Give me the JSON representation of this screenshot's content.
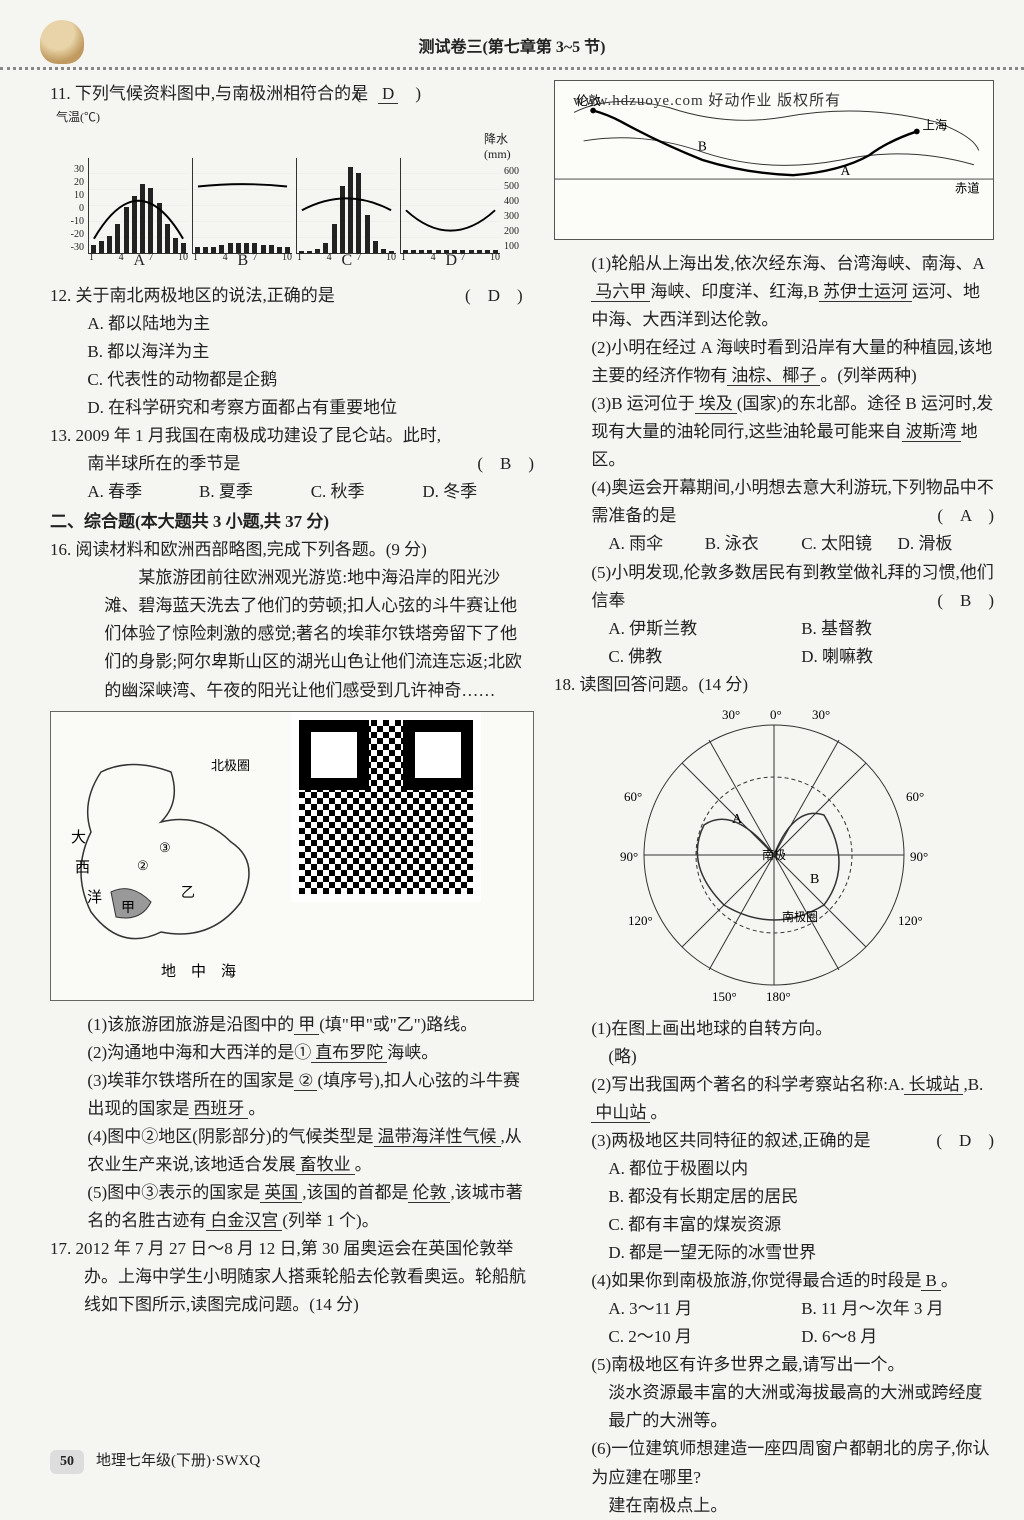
{
  "header": {
    "title": "测试卷三(第七章第 3~5 节)"
  },
  "watermark": "www.hdzuoye.com  好动作业 版权所有",
  "q11": {
    "stem": "11. 下列气候资料图中,与南极洲相符合的是",
    "answer": "D",
    "axis_left_label": "气温(℃)",
    "axis_right_label": "降水(mm)",
    "temp_ticks": [
      "30",
      "20",
      "10",
      "0",
      "-10",
      "-20",
      "-30"
    ],
    "precip_ticks": [
      "600",
      "500",
      "400",
      "300",
      "200",
      "100"
    ],
    "x_ticks": [
      "1",
      "4",
      "7",
      "10"
    ],
    "charts": [
      {
        "label": "A",
        "temp_shape": "peak",
        "bars": [
          8,
          12,
          18,
          30,
          48,
          60,
          72,
          68,
          52,
          30,
          16,
          10
        ]
      },
      {
        "label": "B",
        "temp_shape": "flat",
        "bars": [
          6,
          6,
          6,
          8,
          10,
          10,
          10,
          10,
          8,
          8,
          6,
          6
        ]
      },
      {
        "label": "C",
        "temp_shape": "mid",
        "bars": [
          2,
          2,
          4,
          10,
          30,
          70,
          90,
          84,
          40,
          12,
          4,
          2
        ]
      },
      {
        "label": "D",
        "temp_shape": "valley",
        "bars": [
          3,
          3,
          3,
          3,
          3,
          3,
          3,
          3,
          3,
          3,
          3,
          3
        ]
      }
    ]
  },
  "q12": {
    "stem": "12. 关于南北两极地区的说法,正确的是",
    "answer": "D",
    "opts": {
      "A": "A. 都以陆地为主",
      "B": "B. 都以海洋为主",
      "C": "C. 代表性的动物都是企鹅",
      "D": "D. 在科学研究和考察方面都占有重要地位"
    }
  },
  "q13": {
    "stem": "13. 2009 年 1 月我国在南极成功建设了昆仑站。此时,",
    "stem2": "南半球所在的季节是",
    "answer": "B",
    "opts": {
      "A": "A. 春季",
      "B": "B. 夏季",
      "C": "C. 秋季",
      "D": "D. 冬季"
    }
  },
  "section2": "二、综合题(本大题共 3 小题,共 37 分)",
  "q16": {
    "stem": "16. 阅读材料和欧洲西部略图,完成下列各题。(9 分)",
    "para": "某旅游团前往欧洲观光游览:地中海沿岸的阳光沙滩、碧海蓝天洗去了他们的劳顿;扣人心弦的斗牛赛让他们体验了惊险刺激的感觉;著名的埃菲尔铁塔旁留下了他们的身影;阿尔卑斯山区的湖光山色让他们流连忘返;北欧的幽深峡湾、午夜的阳光让他们感受到几许神奇……",
    "map_labels": {
      "arctic": "北极圈",
      "atl1": "大",
      "atl2": "西",
      "atl3": "洋",
      "med1": "地",
      "med2": "中",
      "med3": "海",
      "jia": "甲",
      "yi": "乙"
    },
    "sub1": {
      "text": "(1)该旅游团旅游是沿图中的",
      "ans": "甲",
      "tail": "(填\"甲\"或\"乙\")路线。"
    },
    "sub2": {
      "text": "(2)沟通地中海和大西洋的是①",
      "ans": "直布罗陀",
      "tail": "海峡。"
    },
    "sub3": {
      "text": "(3)埃菲尔铁塔所在的国家是",
      "ans1": "②",
      "mid": "(填序号),扣人心弦的斗牛赛出现的国家是",
      "ans2": "西班牙",
      "tail": "。"
    },
    "sub4": {
      "text": "(4)图中②地区(阴影部分)的气候类型是",
      "ans1": "温带海洋性气候",
      "mid": ",从农业生产来说,该地适合发展",
      "ans2": "畜牧业",
      "tail": "。"
    },
    "sub5": {
      "text": "(5)图中③表示的国家是",
      "ans1": "英国",
      "mid": ",该国的首都是",
      "ans2": "伦敦",
      "mid2": ",该城市著名的名胜古迹有",
      "ans3": "白金汉宫",
      "tail": "(列举 1 个)。"
    }
  },
  "q17": {
    "stem": "17. 2012 年 7 月 27 日～8 月 12 日,第 30 届奥运会在英国伦敦举办。上海中学生小明随家人搭乘轮船去伦敦看奥运。轮船航线如下图所示,读图完成问题。(14 分)",
    "map_labels": {
      "london": "伦敦",
      "shanghai": "上海",
      "equator": "赤道",
      "A": "A",
      "B": "B"
    },
    "sub1": {
      "text": "(1)轮船从上海出发,依次经东海、台湾海峡、南海、A",
      "ans1": "马六甲",
      "mid1": "海峡、印度洋、红海,B",
      "ans2": "苏伊士运河",
      "tail": "运河、地中海、大西洋到达伦敦。"
    },
    "sub2": {
      "text": "(2)小明在经过 A 海峡时看到沿岸有大量的种植园,该地主要的经济作物有",
      "ans": "油棕、椰子",
      "tail": "。(列举两种)"
    },
    "sub3": {
      "text": "(3)B 运河位于",
      "ans1": "埃及",
      "mid1": "(国家)的东北部。途径 B 运河时,发现有大量的油轮同行,这些油轮最可能来自",
      "ans2": "波斯湾",
      "tail": "地区。"
    },
    "sub4": {
      "text": "(4)奥运会开幕期间,小明想去意大利游玩,下列物品中不需准备的是",
      "answer": "A",
      "opts": {
        "A": "A. 雨伞",
        "B": "B. 泳衣",
        "C": "C. 太阳镜",
        "D": "D. 滑板"
      }
    },
    "sub5": {
      "text": "(5)小明发现,伦敦多数居民有到教堂做礼拜的习惯,他们信奉",
      "answer": "B",
      "opts": {
        "A": "A. 伊斯兰教",
        "B": "B. 基督教",
        "C": "C. 佛教",
        "D": "D. 喇嘛教"
      }
    }
  },
  "q18": {
    "stem": "18. 读图回答问题。(14 分)",
    "lon_labels": [
      "30°",
      "0°",
      "30°",
      "60°",
      "60°",
      "90°",
      "90°",
      "120°",
      "120°",
      "150°",
      "180°"
    ],
    "center": "南极",
    "ring": "南极圈",
    "sub1": {
      "text": "(1)在图上画出地球的自转方向。",
      "ans": "(略)"
    },
    "sub2": {
      "text": "(2)写出我国两个著名的科学考察站名称:A.",
      "ans1": "长城站",
      "mid": ",B.",
      "ans2": "中山站",
      "tail": "。"
    },
    "sub3": {
      "text": "(3)两极地区共同特征的叙述,正确的是",
      "answer": "D",
      "opts": {
        "A": "A. 都位于极圈以内",
        "B": "B. 都没有长期定居的居民",
        "C": "C. 都有丰富的煤炭资源",
        "D": "D. 都是一望无际的冰雪世界"
      }
    },
    "sub4": {
      "text": "(4)如果你到南极旅游,你觉得最合适的时段是",
      "ans": "B",
      "tail": "。",
      "opts": {
        "A": "A. 3～11 月",
        "B": "B. 11 月～次年 3 月",
        "C": "C. 2～10 月",
        "D": "D. 6～8 月"
      }
    },
    "sub5": {
      "text": "(5)南极地区有许多世界之最,请写出一个。",
      "ans": "淡水资源最丰富的大洲或海拔最高的大洲或跨经度最广的大洲等。"
    },
    "sub6": {
      "text": "(6)一位建筑师想建造一座四周窗户都朝北的房子,你认为应建在哪里?",
      "ans": "建在南极点上。"
    }
  },
  "footer": {
    "page": "50",
    "book": "地理七年级(下册)·SWXQ"
  }
}
